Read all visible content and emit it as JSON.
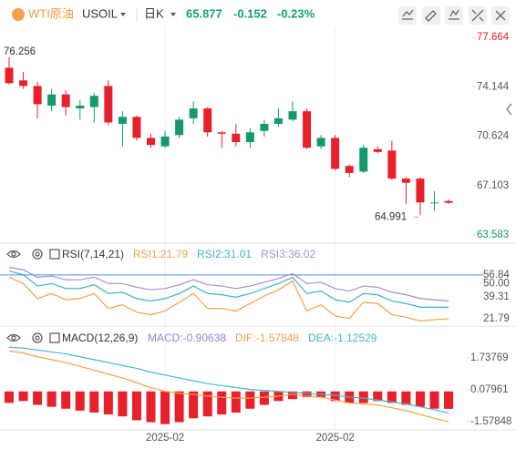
{
  "header": {
    "name": "WTI原油",
    "symbol": "USOIL",
    "period": "日K",
    "price": "65.877",
    "change": "-0.152",
    "change_pct": "-0.23%"
  },
  "chart_data": [
    {
      "type": "candlestick",
      "open": [
        75.5,
        74.6,
        74.2,
        72.8,
        73.6,
        72.6,
        72.7,
        74.2,
        71.5,
        72.0,
        70.5,
        69.9,
        70.7,
        71.9,
        72.6,
        70.9,
        70.8,
        70.2,
        71.0,
        71.5,
        71.8,
        72.4,
        69.9,
        70.5,
        68.5,
        68.1,
        69.7,
        69.6,
        67.6,
        67.6,
        65.9,
        66.0
      ],
      "high": [
        76.256,
        75.2,
        74.5,
        74.0,
        73.9,
        73.2,
        73.7,
        74.6,
        72.4,
        72.1,
        70.8,
        71.0,
        72.0,
        73.1,
        72.7,
        71.0,
        71.5,
        71.2,
        71.8,
        72.6,
        73.1,
        72.6,
        70.7,
        70.7,
        68.6,
        70.0,
        69.9,
        70.3,
        67.7,
        67.7,
        66.7,
        66.1
      ],
      "low": [
        74.3,
        74.0,
        71.9,
        72.4,
        72.1,
        71.8,
        71.6,
        71.4,
        69.9,
        70.3,
        69.8,
        69.8,
        70.5,
        71.5,
        70.6,
        69.8,
        69.9,
        69.8,
        70.6,
        71.3,
        71.7,
        69.7,
        69.7,
        68.2,
        67.7,
        68.0,
        69.4,
        67.5,
        65.8,
        64.991,
        65.3,
        65.8
      ],
      "close": [
        74.4,
        74.2,
        72.9,
        73.6,
        72.7,
        72.8,
        73.5,
        71.6,
        72.0,
        70.5,
        70.0,
        70.6,
        71.8,
        72.6,
        70.9,
        70.8,
        70.2,
        70.9,
        71.5,
        71.9,
        72.4,
        69.8,
        70.5,
        68.3,
        68.0,
        69.8,
        69.5,
        67.6,
        67.3,
        65.9,
        65.9,
        65.877
      ],
      "up_color": "#15996b",
      "down_color": "#e8202a",
      "annotations": [
        "76.256",
        "64.991"
      ],
      "ylim": [
        63.0,
        78.38
      ],
      "yticks": [
        77.664,
        74.144,
        70.624,
        67.103,
        63.583
      ]
    },
    {
      "type": "line",
      "title": "RSI(7,14,21)",
      "series": [
        {
          "name": "RSI1:21.79",
          "color": "#f5a04a",
          "values": [
            55,
            50,
            38,
            42,
            37,
            38,
            42,
            30,
            33,
            27,
            25,
            28,
            35,
            42,
            30,
            30,
            28,
            34,
            40,
            45,
            52,
            28,
            33,
            24,
            22,
            35,
            34,
            25,
            23,
            20,
            21,
            21.79
          ]
        },
        {
          "name": "RSI2:31.01",
          "color": "#3bb4c4",
          "values": [
            60,
            57,
            48,
            50,
            46,
            46,
            49,
            42,
            43,
            38,
            36,
            38,
            42,
            48,
            42,
            41,
            39,
            42,
            46,
            50,
            55,
            42,
            44,
            37,
            35,
            42,
            41,
            36,
            34,
            31,
            31,
            31.01
          ]
        },
        {
          "name": "RSI3:36.02",
          "color": "#a38ed6",
          "values": [
            63,
            61,
            55,
            56,
            53,
            53,
            55,
            50,
            50,
            47,
            45,
            46,
            49,
            53,
            49,
            48,
            46,
            48,
            51,
            54,
            58,
            50,
            51,
            46,
            44,
            48,
            47,
            43,
            41,
            38,
            37,
            36.02
          ]
        }
      ],
      "ylim": [
        17.4,
        67.0
      ],
      "yticks": [
        21.79,
        39.31,
        {
          "value": 50,
          "label": "50.00"
        },
        56.84
      ]
    },
    {
      "type": "macd",
      "title": "MACD(12,26,9)",
      "categories": [
        null,
        null,
        null,
        null,
        null,
        null,
        null,
        null,
        null,
        null,
        null,
        "2025-02",
        null,
        null,
        null,
        null,
        null,
        null,
        null,
        null,
        null,
        null,
        null,
        "2025-02",
        null,
        null,
        null,
        null,
        null,
        null,
        null,
        null
      ],
      "series": [
        {
          "name": "MACD:-0.90638",
          "color": "#e8202a",
          "values": [
            -0.6,
            -0.5,
            -0.7,
            -0.8,
            -0.9,
            -1.0,
            -1.1,
            -1.2,
            -1.3,
            -1.5,
            -1.6,
            -1.7,
            -1.6,
            -1.4,
            -1.3,
            -1.2,
            -1.1,
            -0.9,
            -0.7,
            -0.5,
            -0.4,
            -0.3,
            -0.3,
            -0.5,
            -0.6,
            -0.6,
            -0.5,
            -0.6,
            -0.7,
            -0.8,
            -0.9,
            -0.90638
          ]
        },
        {
          "name": "DIF:-1.57848",
          "color": "#f5a04a",
          "values": [
            2.1,
            2.0,
            1.8,
            1.65,
            1.5,
            1.3,
            1.1,
            0.9,
            0.7,
            0.45,
            0.2,
            0.0,
            -0.1,
            -0.15,
            -0.25,
            -0.3,
            -0.35,
            -0.35,
            -0.3,
            -0.25,
            -0.15,
            -0.25,
            -0.3,
            -0.45,
            -0.6,
            -0.65,
            -0.7,
            -0.85,
            -1.0,
            -1.2,
            -1.4,
            -1.57848
          ]
        },
        {
          "name": "DEA:-1.12529",
          "color": "#43b8c9",
          "values": [
            2.3,
            2.25,
            2.15,
            2.05,
            1.95,
            1.8,
            1.65,
            1.5,
            1.35,
            1.2,
            1.0,
            0.85,
            0.7,
            0.55,
            0.4,
            0.3,
            0.2,
            0.1,
            0.05,
            0.0,
            -0.05,
            -0.1,
            -0.15,
            -0.2,
            -0.3,
            -0.35,
            -0.45,
            -0.55,
            -0.65,
            -0.8,
            -0.95,
            -1.12529
          ]
        }
      ],
      "ylim": [
        -2.0,
        2.45
      ],
      "yticks": [
        1.73769,
        0.07961,
        -1.57848
      ]
    }
  ]
}
